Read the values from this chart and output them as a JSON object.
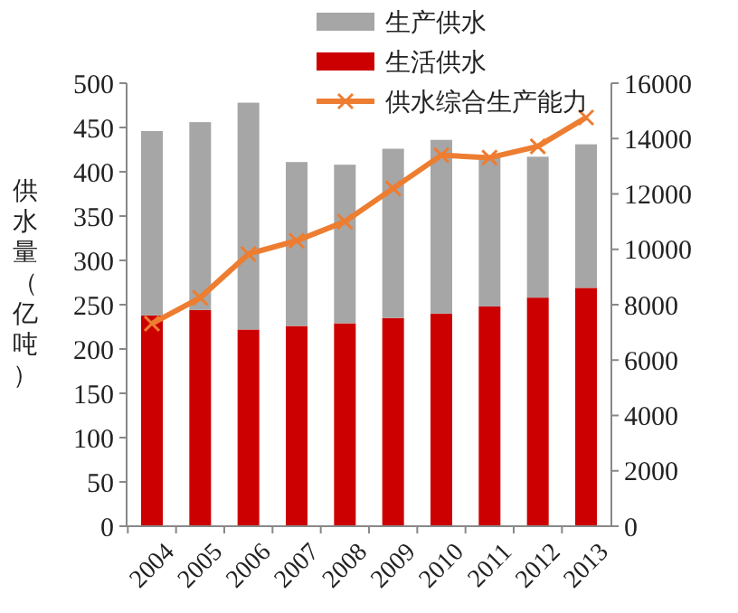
{
  "chart_data": {
    "type": "bar",
    "stacked": true,
    "ylabel": "供水量（亿吨）",
    "categories": [
      "2004",
      "2005",
      "2006",
      "2007",
      "2008",
      "2009",
      "2010",
      "2011",
      "2012",
      "2013"
    ],
    "series": [
      {
        "name": "生活供水",
        "color": "#cc0000",
        "values": [
          238,
          244,
          222,
          226,
          229,
          235,
          240,
          248,
          258,
          269
        ]
      },
      {
        "name": "生产供水",
        "color": "#a6a6a6",
        "values": [
          208,
          212,
          256,
          185,
          179,
          191,
          196,
          170,
          159,
          162
        ]
      },
      {
        "name": "供水综合生产能力",
        "type": "line",
        "axis": "y2",
        "color": "#ed7d31",
        "marker": "cross",
        "values": [
          7320,
          8250,
          9830,
          10310,
          11000,
          12200,
          13400,
          13310,
          13720,
          14760
        ]
      }
    ],
    "ylim": [
      0,
      500
    ],
    "yticks": [
      0,
      50,
      100,
      150,
      200,
      250,
      300,
      350,
      400,
      450,
      500
    ],
    "y2lim": [
      0,
      16000
    ],
    "y2ticks": [
      0,
      2000,
      4000,
      6000,
      8000,
      10000,
      12000,
      14000,
      16000
    ],
    "legend": "top right",
    "grid": false
  }
}
